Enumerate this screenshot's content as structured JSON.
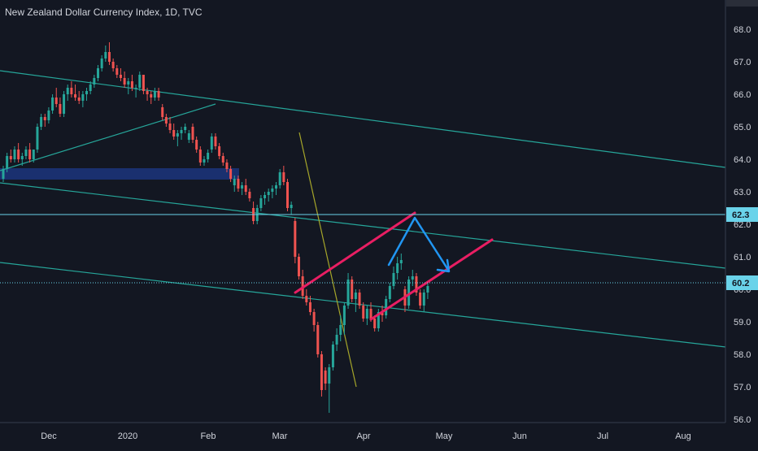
{
  "header": {
    "title": "New Zealand Dollar Currency Index, 1D, TVC"
  },
  "colors": {
    "background": "#131722",
    "up": "#26a69a",
    "down": "#ef5350",
    "text": "#d1d4dc",
    "trendline": "#26a69a",
    "channel": "#e91e63",
    "arrow": "#2196f3",
    "zone": "#1e3a8a",
    "yellow_line": "#a6a62a",
    "hline": "#6ad3ea"
  },
  "chart_data": {
    "type": "candlestick",
    "title": "New Zealand Dollar Currency Index, 1D, TVC",
    "x_ticks": [
      "Dec",
      "2020",
      "Feb",
      "Mar",
      "Apr",
      "May",
      "Jun",
      "Jul",
      "Aug"
    ],
    "y_ticks": [
      "68.0",
      "67.0",
      "66.0",
      "65.0",
      "64.0",
      "63.0",
      "62.0",
      "61.0",
      "60.0",
      "59.0",
      "58.0",
      "57.0",
      "56.0"
    ],
    "ylim": [
      55.15,
      68.9
    ],
    "price_labels": [
      {
        "value": 62.3,
        "text": "62.3"
      },
      {
        "value": 60.2,
        "text": "60.2"
      }
    ],
    "candles": [
      [
        63.4,
        63.8,
        63.3,
        63.7
      ],
      [
        63.7,
        64.2,
        63.6,
        64.1
      ],
      [
        64.1,
        64.3,
        63.9,
        64.0
      ],
      [
        64.0,
        64.4,
        63.9,
        64.3
      ],
      [
        64.3,
        64.5,
        63.9,
        64.0
      ],
      [
        64.0,
        64.2,
        63.8,
        64.1
      ],
      [
        64.1,
        64.4,
        64.0,
        64.3
      ],
      [
        64.3,
        64.5,
        63.9,
        64.0
      ],
      [
        64.0,
        64.3,
        63.9,
        64.3
      ],
      [
        64.3,
        65.1,
        64.2,
        65.0
      ],
      [
        65.0,
        65.4,
        64.9,
        65.3
      ],
      [
        65.3,
        65.4,
        65.0,
        65.2
      ],
      [
        65.2,
        65.6,
        65.1,
        65.5
      ],
      [
        65.5,
        66.0,
        65.4,
        65.9
      ],
      [
        65.9,
        66.2,
        65.6,
        65.7
      ],
      [
        65.7,
        65.9,
        65.3,
        65.4
      ],
      [
        65.4,
        66.1,
        65.3,
        66.0
      ],
      [
        66.0,
        66.3,
        65.8,
        66.2
      ],
      [
        66.2,
        66.4,
        65.9,
        66.0
      ],
      [
        66.0,
        66.3,
        65.8,
        65.9
      ],
      [
        65.9,
        66.1,
        65.7,
        65.8
      ],
      [
        65.8,
        66.1,
        65.6,
        66.0
      ],
      [
        66.0,
        66.2,
        65.8,
        66.1
      ],
      [
        66.1,
        66.4,
        66.0,
        66.3
      ],
      [
        66.3,
        66.6,
        66.2,
        66.5
      ],
      [
        66.5,
        66.9,
        66.4,
        66.8
      ],
      [
        66.8,
        67.2,
        66.7,
        67.1
      ],
      [
        67.1,
        67.5,
        67.0,
        67.3
      ],
      [
        67.3,
        67.6,
        66.9,
        67.0
      ],
      [
        67.0,
        67.1,
        66.7,
        66.8
      ],
      [
        66.8,
        66.9,
        66.5,
        66.6
      ],
      [
        66.6,
        66.8,
        66.4,
        66.5
      ],
      [
        66.5,
        66.7,
        66.2,
        66.3
      ],
      [
        66.3,
        66.5,
        66.0,
        66.4
      ],
      [
        66.4,
        66.6,
        66.1,
        66.2
      ],
      [
        66.2,
        66.3,
        65.9,
        66.2
      ],
      [
        66.2,
        66.7,
        66.1,
        66.6
      ],
      [
        66.6,
        66.6,
        66.0,
        66.1
      ],
      [
        66.1,
        66.2,
        65.8,
        66.0
      ],
      [
        66.0,
        66.1,
        65.7,
        65.9
      ],
      [
        65.9,
        66.2,
        65.8,
        66.1
      ],
      [
        66.1,
        66.2,
        65.8,
        65.9
      ],
      [
        65.6,
        65.7,
        65.2,
        65.3
      ],
      [
        65.3,
        65.4,
        65.0,
        65.1
      ],
      [
        65.1,
        65.3,
        64.8,
        64.9
      ],
      [
        64.9,
        65.1,
        64.6,
        64.7
      ],
      [
        64.7,
        64.9,
        64.4,
        64.8
      ],
      [
        64.8,
        65.0,
        64.6,
        64.9
      ],
      [
        64.9,
        65.1,
        64.8,
        65.0
      ],
      [
        64.6,
        64.9,
        64.5,
        64.8
      ],
      [
        65.0,
        65.1,
        64.5,
        64.6
      ],
      [
        64.6,
        64.7,
        64.2,
        64.3
      ],
      [
        64.3,
        64.4,
        63.8,
        63.9
      ],
      [
        63.9,
        64.1,
        63.8,
        64.0
      ],
      [
        64.0,
        64.3,
        63.9,
        64.2
      ],
      [
        64.3,
        64.8,
        64.2,
        64.7
      ],
      [
        64.7,
        64.8,
        64.3,
        64.4
      ],
      [
        64.4,
        64.5,
        64.0,
        64.1
      ],
      [
        64.1,
        64.2,
        63.8,
        63.9
      ],
      [
        63.9,
        64.0,
        63.6,
        63.7
      ],
      [
        63.7,
        63.8,
        63.3,
        63.4
      ],
      [
        63.2,
        63.5,
        63.0,
        63.4
      ],
      [
        63.4,
        63.5,
        63.0,
        63.1
      ],
      [
        63.1,
        63.3,
        62.9,
        63.2
      ],
      [
        63.2,
        63.4,
        62.9,
        63.0
      ],
      [
        63.0,
        63.1,
        62.7,
        62.8
      ],
      [
        62.5,
        62.7,
        62.0,
        62.1
      ],
      [
        62.1,
        62.6,
        62.0,
        62.5
      ],
      [
        62.5,
        62.9,
        62.4,
        62.8
      ],
      [
        62.8,
        63.0,
        62.6,
        62.9
      ],
      [
        62.9,
        63.1,
        62.7,
        63.0
      ],
      [
        63.0,
        63.2,
        62.8,
        63.1
      ],
      [
        63.1,
        63.3,
        62.9,
        63.2
      ],
      [
        63.2,
        63.7,
        63.1,
        63.6
      ],
      [
        63.6,
        63.8,
        63.2,
        63.3
      ],
      [
        63.3,
        63.4,
        62.4,
        62.5
      ],
      [
        62.5,
        62.7,
        62.3,
        62.6
      ],
      [
        62.1,
        62.2,
        60.8,
        61.0
      ],
      [
        61.0,
        61.1,
        60.3,
        60.4
      ],
      [
        60.4,
        60.6,
        59.7,
        59.8
      ],
      [
        59.8,
        60.0,
        59.5,
        59.6
      ],
      [
        59.6,
        59.8,
        59.2,
        59.3
      ],
      [
        59.3,
        59.4,
        58.7,
        58.9
      ],
      [
        58.9,
        59.0,
        57.9,
        58.0
      ],
      [
        58.0,
        58.1,
        56.7,
        56.9
      ],
      [
        57.5,
        57.6,
        56.9,
        57.1
      ],
      [
        57.1,
        57.7,
        56.2,
        57.6
      ],
      [
        57.6,
        58.4,
        57.5,
        58.3
      ],
      [
        58.3,
        58.8,
        58.1,
        58.6
      ],
      [
        58.6,
        59.2,
        58.4,
        58.9
      ],
      [
        58.9,
        59.6,
        58.6,
        59.5
      ],
      [
        59.5,
        60.5,
        59.4,
        60.3
      ],
      [
        60.3,
        60.4,
        59.6,
        59.7
      ],
      [
        59.7,
        60.0,
        59.3,
        59.9
      ],
      [
        59.9,
        60.0,
        59.4,
        59.5
      ],
      [
        59.5,
        59.6,
        59.0,
        59.1
      ],
      [
        59.1,
        59.5,
        58.9,
        59.4
      ],
      [
        59.4,
        59.6,
        59.0,
        59.1
      ],
      [
        59.1,
        59.2,
        58.7,
        58.8
      ],
      [
        58.8,
        59.4,
        58.7,
        59.3
      ],
      [
        59.3,
        59.5,
        59.0,
        59.2
      ],
      [
        59.2,
        59.8,
        59.1,
        59.7
      ],
      [
        59.7,
        60.2,
        59.6,
        60.1
      ],
      [
        60.1,
        60.7,
        60.0,
        60.5
      ],
      [
        60.5,
        61.0,
        60.3,
        60.8
      ],
      [
        60.8,
        61.1,
        60.6,
        60.9
      ],
      [
        60.0,
        60.1,
        59.3,
        59.5
      ],
      [
        59.5,
        60.4,
        59.4,
        60.3
      ],
      [
        60.3,
        60.6,
        60.1,
        60.4
      ],
      [
        60.4,
        60.5,
        59.8,
        59.9
      ],
      [
        59.9,
        60.0,
        59.4,
        59.5
      ],
      [
        59.5,
        60.0,
        59.3,
        59.9
      ],
      [
        59.9,
        60.2,
        59.7,
        60.1
      ]
    ]
  }
}
